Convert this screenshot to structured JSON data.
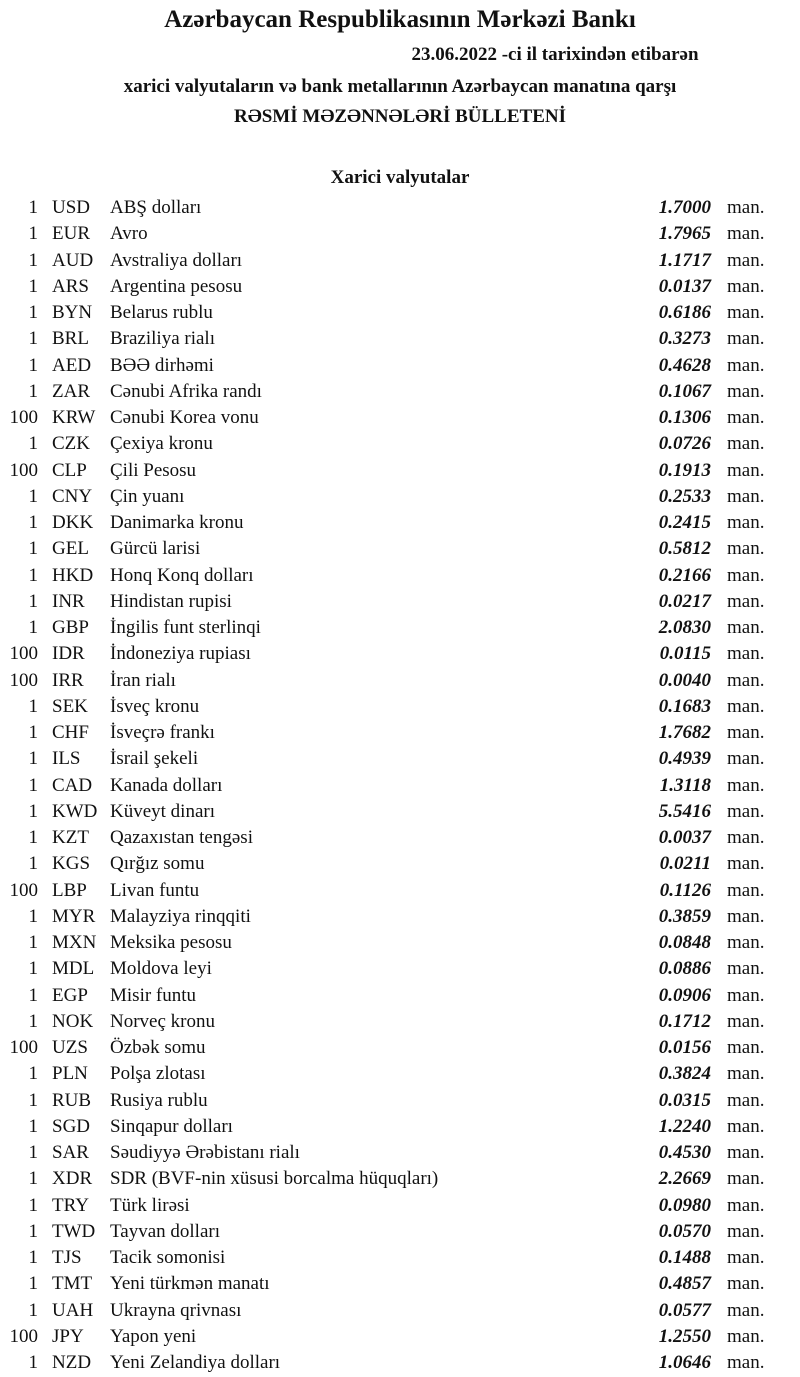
{
  "header": {
    "title": "Azərbaycan Respublikasının Mərkəzi Bankı",
    "date_line": "23.06.2022 -ci il tarixindən etibarən",
    "subtitle": "xarici valyutaların və bank metallarının Azərbaycan manatına qarşı",
    "bulletin": "RƏSMİ MƏZƏNNƏLƏRİ BÜLLETENİ"
  },
  "section_title": "Xarici valyutalar",
  "unit": "man.",
  "rates": [
    {
      "qty": "1",
      "code": "USD",
      "name": "ABŞ dolları",
      "rate": "1.7000"
    },
    {
      "qty": "1",
      "code": "EUR",
      "name": "Avro",
      "rate": "1.7965"
    },
    {
      "qty": "1",
      "code": "AUD",
      "name": "Avstraliya dolları",
      "rate": "1.1717"
    },
    {
      "qty": "1",
      "code": "ARS",
      "name": "Argentina pesosu",
      "rate": "0.0137"
    },
    {
      "qty": "1",
      "code": "BYN",
      "name": "Belarus rublu",
      "rate": "0.6186"
    },
    {
      "qty": "1",
      "code": "BRL",
      "name": "Braziliya rialı",
      "rate": "0.3273"
    },
    {
      "qty": "1",
      "code": "AED",
      "name": "BƏƏ dirhəmi",
      "rate": "0.4628"
    },
    {
      "qty": "1",
      "code": "ZAR",
      "name": "Cənubi Afrika randı",
      "rate": "0.1067"
    },
    {
      "qty": "100",
      "code": "KRW",
      "name": "Cənubi Korea vonu",
      "rate": "0.1306"
    },
    {
      "qty": "1",
      "code": "CZK",
      "name": "Çexiya kronu",
      "rate": "0.0726"
    },
    {
      "qty": "100",
      "code": "CLP",
      "name": "Çili Pesosu",
      "rate": "0.1913"
    },
    {
      "qty": "1",
      "code": "CNY",
      "name": "Çin yuanı",
      "rate": "0.2533"
    },
    {
      "qty": "1",
      "code": "DKK",
      "name": "Danimarka kronu",
      "rate": "0.2415"
    },
    {
      "qty": "1",
      "code": "GEL",
      "name": "Gürcü larisi",
      "rate": "0.5812"
    },
    {
      "qty": "1",
      "code": "HKD",
      "name": "Honq Konq dolları",
      "rate": "0.2166"
    },
    {
      "qty": "1",
      "code": "INR",
      "name": "Hindistan rupisi",
      "rate": "0.0217"
    },
    {
      "qty": "1",
      "code": "GBP",
      "name": "İngilis funt sterlinqi",
      "rate": "2.0830"
    },
    {
      "qty": "100",
      "code": "IDR",
      "name": "İndoneziya rupiası",
      "rate": "0.0115"
    },
    {
      "qty": "100",
      "code": "IRR",
      "name": "İran rialı",
      "rate": "0.0040"
    },
    {
      "qty": "1",
      "code": "SEK",
      "name": "İsveç kronu",
      "rate": "0.1683"
    },
    {
      "qty": "1",
      "code": "CHF",
      "name": "İsveçrə frankı",
      "rate": "1.7682"
    },
    {
      "qty": "1",
      "code": "ILS",
      "name": "İsrail şekeli",
      "rate": "0.4939"
    },
    {
      "qty": "1",
      "code": "CAD",
      "name": "Kanada dolları",
      "rate": "1.3118"
    },
    {
      "qty": "1",
      "code": "KWD",
      "name": "Küveyt dinarı",
      "rate": "5.5416"
    },
    {
      "qty": "1",
      "code": "KZT",
      "name": "Qazaxıstan tengəsi",
      "rate": "0.0037"
    },
    {
      "qty": "1",
      "code": "KGS",
      "name": "Qırğız somu",
      "rate": "0.0211"
    },
    {
      "qty": "100",
      "code": "LBP",
      "name": "Livan funtu",
      "rate": "0.1126"
    },
    {
      "qty": "1",
      "code": "MYR",
      "name": "Malayziya rinqqiti",
      "rate": "0.3859"
    },
    {
      "qty": "1",
      "code": "MXN",
      "name": "Meksika pesosu",
      "rate": "0.0848"
    },
    {
      "qty": "1",
      "code": "MDL",
      "name": "Moldova leyi",
      "rate": "0.0886"
    },
    {
      "qty": "1",
      "code": "EGP",
      "name": "Misir funtu",
      "rate": "0.0906"
    },
    {
      "qty": "1",
      "code": "NOK",
      "name": "Norveç kronu",
      "rate": "0.1712"
    },
    {
      "qty": "100",
      "code": "UZS",
      "name": "Özbək somu",
      "rate": "0.0156"
    },
    {
      "qty": "1",
      "code": "PLN",
      "name": "Polşa zlotası",
      "rate": "0.3824"
    },
    {
      "qty": "1",
      "code": "RUB",
      "name": "Rusiya rublu",
      "rate": "0.0315"
    },
    {
      "qty": "1",
      "code": "SGD",
      "name": "Sinqapur dolları",
      "rate": "1.2240"
    },
    {
      "qty": "1",
      "code": "SAR",
      "name": "Səudiyyə Ərəbistanı rialı",
      "rate": "0.4530"
    },
    {
      "qty": "1",
      "code": "XDR",
      "name": "SDR (BVF-nin xüsusi borcalma hüquqları)",
      "rate": "2.2669"
    },
    {
      "qty": "1",
      "code": "TRY",
      "name": "Türk lirəsi",
      "rate": "0.0980"
    },
    {
      "qty": "1",
      "code": "TWD",
      "name": "Tayvan dolları",
      "rate": "0.0570"
    },
    {
      "qty": "1",
      "code": "TJS",
      "name": "Tacik somonisi",
      "rate": "0.1488"
    },
    {
      "qty": "1",
      "code": "TMT",
      "name": "Yeni türkmən manatı",
      "rate": "0.4857"
    },
    {
      "qty": "1",
      "code": "UAH",
      "name": "Ukrayna qrivnası",
      "rate": "0.0577"
    },
    {
      "qty": "100",
      "code": "JPY",
      "name": "Yapon yeni",
      "rate": "1.2550"
    },
    {
      "qty": "1",
      "code": "NZD",
      "name": "Yeni Zelandiya dolları",
      "rate": "1.0646"
    }
  ]
}
